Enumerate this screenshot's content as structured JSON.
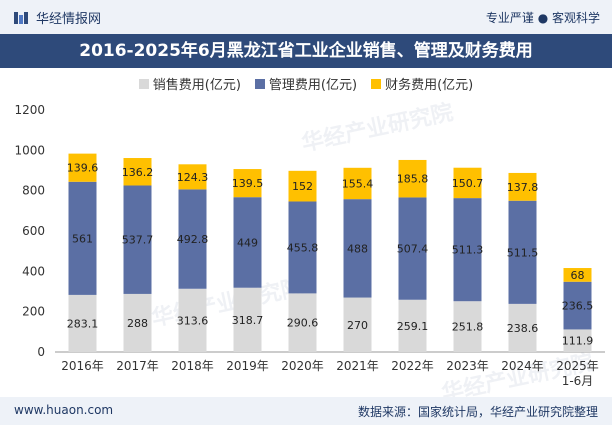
{
  "header": {
    "brand": "华经情报网",
    "right_text": "专业严谨 ● 客观科学"
  },
  "title": "2016-2025年6月黑龙江省工业企业销售、管理及财务费用",
  "footer": {
    "left": "www.huaon.com",
    "right": "数据来源：国家统计局，华经产业研究院整理"
  },
  "watermarks": [
    "华经产业研究院",
    "华经产业研究院",
    "华经产业研究院"
  ],
  "colors": {
    "sales": "#d9d9d9",
    "management": "#5b6fa4",
    "finance": "#ffc000",
    "header_bg": "#2e4a7a"
  },
  "chart_data": {
    "type": "bar",
    "stacked": true,
    "title": "2016-2025年6月黑龙江省工业企业销售、管理及财务费用",
    "categories": [
      "2016年",
      "2017年",
      "2018年",
      "2019年",
      "2020年",
      "2021年",
      "2022年",
      "2023年",
      "2024年",
      "2025年\n1-6月"
    ],
    "series": [
      {
        "name": "销售费用(亿元)",
        "values": [
          283.1,
          288,
          313.6,
          318.7,
          290.6,
          270,
          259.1,
          251.8,
          238.6,
          111.9
        ]
      },
      {
        "name": "管理费用(亿元)",
        "values": [
          561,
          537.7,
          492.8,
          449,
          455.8,
          488,
          507.4,
          511.3,
          511.5,
          236.5
        ]
      },
      {
        "name": "财务费用(亿元)",
        "values": [
          139.6,
          136.2,
          124.3,
          139.5,
          152,
          155.4,
          185.8,
          150.7,
          137.8,
          68
        ]
      }
    ],
    "ylim": [
      0,
      1200
    ],
    "yticks": [
      0,
      200,
      400,
      600,
      800,
      1000,
      1200
    ],
    "xlabel": "",
    "ylabel": "",
    "legend": "top-center"
  }
}
